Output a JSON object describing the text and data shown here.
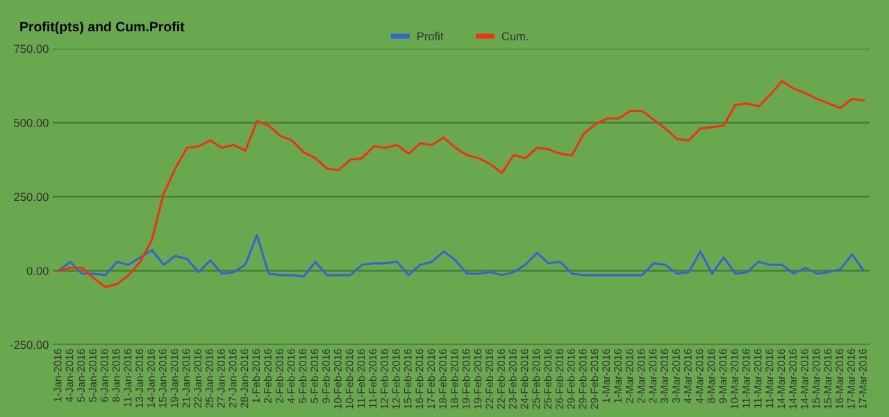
{
  "chart_data": {
    "type": "line",
    "title": "Profit(pts) and Cum.Profit",
    "categories": [
      "1-Jan-2016",
      "4-Jan-2016",
      "5-Jan-2016",
      "5-Jan-2016",
      "6-Jan-2016",
      "8-Jan-2016",
      "11-Jan-2016",
      "13-Jan-2016",
      "14-Jan-2016",
      "15-Jan-2016",
      "19-Jan-2016",
      "21-Jan-2016",
      "22-Jan-2016",
      "25-Jan-2016",
      "27-Jan-2016",
      "27-Jan-2016",
      "28-Jan-2016",
      "1-Feb-2016",
      "2-Feb-2016",
      "2-Feb-2016",
      "4-Feb-2016",
      "5-Feb-2016",
      "5-Feb-2016",
      "9-Feb-2016",
      "10-Feb-2016",
      "10-Feb-2016",
      "11-Feb-2016",
      "11-Feb-2016",
      "12-Feb-2016",
      "12-Feb-2016",
      "15-Feb-2016",
      "16-Feb-2016",
      "17-Feb-2016",
      "18-Feb-2016",
      "18-Feb-2016",
      "19-Feb-2016",
      "19-Feb-2016",
      "22-Feb-2016",
      "22-Feb-2016",
      "23-Feb-2016",
      "24-Feb-2016",
      "25-Feb-2016",
      "25-Feb-2016",
      "26-Feb-2016",
      "29-Feb-2016",
      "29-Feb-2016",
      "29-Feb-2016",
      "1-Mar-2016",
      "1-Mar-2016",
      "2-Mar-2016",
      "2-Mar-2016",
      "2-Mar-2016",
      "3-Mar-2016",
      "3-Mar-2016",
      "4-Mar-2016",
      "4-Mar-2016",
      "8-Mar-2016",
      "9-Mar-2016",
      "10-Mar-2016",
      "11-Mar-2016",
      "11-Mar-2016",
      "11-Mar-2016",
      "14-Mar-2016",
      "14-Mar-2016",
      "14-Mar-2016",
      "15-Mar-2016",
      "15-Mar-2016",
      "16-Mar-2016",
      "17-Mar-2016",
      "17-Mar-2016"
    ],
    "series": [
      {
        "name": "Profit",
        "color": "#3366cc",
        "values": [
          0,
          30,
          -10,
          -10,
          -15,
          30,
          20,
          45,
          70,
          20,
          50,
          40,
          -5,
          35,
          -10,
          -5,
          20,
          120,
          -10,
          -15,
          -15,
          -20,
          30,
          -15,
          -15,
          -15,
          20,
          25,
          25,
          30,
          -15,
          20,
          30,
          65,
          35,
          -10,
          -10,
          -5,
          -15,
          -5,
          20,
          60,
          25,
          30,
          -10,
          -15,
          -15,
          -15,
          -15,
          -15,
          -15,
          25,
          20,
          -10,
          -5,
          65,
          -10,
          45,
          -10,
          -5,
          30,
          20,
          20,
          -10,
          10,
          -10,
          -5,
          5,
          55,
          0
        ]
      },
      {
        "name": "Cum.",
        "color": "#ee3311",
        "values": [
          0,
          10,
          10,
          -25,
          -55,
          -45,
          -15,
          30,
          105,
          260,
          345,
          415,
          420,
          440,
          415,
          425,
          405,
          505,
          490,
          455,
          440,
          400,
          380,
          345,
          340,
          375,
          380,
          420,
          415,
          425,
          395,
          430,
          425,
          450,
          415,
          390,
          380,
          360,
          330,
          391,
          380,
          415,
          410,
          395,
          390,
          462,
          495,
          514,
          514,
          540,
          540,
          510,
          480,
          445,
          440,
          480,
          485,
          490,
          560,
          565,
          555,
          595,
          640,
          615,
          600,
          580,
          565,
          550,
          580,
          575
        ]
      }
    ],
    "ylim": [
      -250,
      750
    ],
    "yticks": [
      {
        "value": -250,
        "label": "-250.00"
      },
      {
        "value": 0,
        "label": "0.00"
      },
      {
        "value": 250,
        "label": "250.00"
      },
      {
        "value": 500,
        "label": "500.00"
      },
      {
        "value": 750,
        "label": "750.00"
      }
    ],
    "grid": "y",
    "legend": "top",
    "marker": "none",
    "line_style": "solid"
  }
}
